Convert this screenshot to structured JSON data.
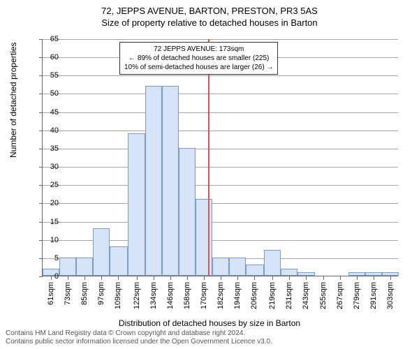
{
  "title": "72, JEPPS AVENUE, BARTON, PRESTON, PR3 5AS",
  "subtitle": "Size of property relative to detached houses in Barton",
  "y_axis_title": "Number of detached properties",
  "x_axis_title": "Distribution of detached houses by size in Barton",
  "footer_line1": "Contains HM Land Registry data © Crown copyright and database right 2024.",
  "footer_line2": "Contains public sector information licensed under the Open Government Licence v3.0.",
  "info_box": {
    "line1": "72 JEPPS AVENUE: 173sqm",
    "line2": "← 89% of detached houses are smaller (225)",
    "line3": "10% of semi-detached houses are larger (26) →"
  },
  "chart": {
    "type": "histogram",
    "ylim": [
      0,
      65
    ],
    "ytick_step": 5,
    "xlim_sqm": [
      55,
      309
    ],
    "x_labels": [
      "61sqm",
      "73sqm",
      "85sqm",
      "97sqm",
      "109sqm",
      "122sqm",
      "134sqm",
      "146sqm",
      "158sqm",
      "170sqm",
      "182sqm",
      "194sqm",
      "206sqm",
      "219sqm",
      "231sqm",
      "243sqm",
      "255sqm",
      "267sqm",
      "279sqm",
      "291sqm",
      "303sqm"
    ],
    "x_label_positions_sqm": [
      61,
      73,
      85,
      97,
      109,
      122,
      134,
      146,
      158,
      170,
      182,
      194,
      206,
      219,
      231,
      243,
      255,
      267,
      279,
      291,
      303
    ],
    "ref_line_sqm": 173,
    "bar_color": "#d5e3f7",
    "bar_border": "#7a9cc6",
    "ref_line_color": "#d9534f",
    "grid_color": "#666666",
    "background_color": "#ffffff",
    "bars": [
      {
        "x_sqm": 55,
        "w_sqm": 12,
        "value": 2
      },
      {
        "x_sqm": 67,
        "w_sqm": 12,
        "value": 5
      },
      {
        "x_sqm": 79,
        "w_sqm": 12,
        "value": 5
      },
      {
        "x_sqm": 91,
        "w_sqm": 12,
        "value": 13
      },
      {
        "x_sqm": 103,
        "w_sqm": 13,
        "value": 8
      },
      {
        "x_sqm": 116,
        "w_sqm": 12,
        "value": 39
      },
      {
        "x_sqm": 128,
        "w_sqm": 12,
        "value": 52
      },
      {
        "x_sqm": 140,
        "w_sqm": 12,
        "value": 52
      },
      {
        "x_sqm": 152,
        "w_sqm": 12,
        "value": 35
      },
      {
        "x_sqm": 164,
        "w_sqm": 12,
        "value": 21
      },
      {
        "x_sqm": 176,
        "w_sqm": 12,
        "value": 5
      },
      {
        "x_sqm": 188,
        "w_sqm": 12,
        "value": 5
      },
      {
        "x_sqm": 200,
        "w_sqm": 13,
        "value": 3
      },
      {
        "x_sqm": 213,
        "w_sqm": 12,
        "value": 7
      },
      {
        "x_sqm": 225,
        "w_sqm": 12,
        "value": 2
      },
      {
        "x_sqm": 237,
        "w_sqm": 12,
        "value": 1
      },
      {
        "x_sqm": 249,
        "w_sqm": 12,
        "value": 0
      },
      {
        "x_sqm": 261,
        "w_sqm": 12,
        "value": 0
      },
      {
        "x_sqm": 273,
        "w_sqm": 12,
        "value": 1
      },
      {
        "x_sqm": 285,
        "w_sqm": 12,
        "value": 1
      },
      {
        "x_sqm": 297,
        "w_sqm": 12,
        "value": 1
      }
    ]
  }
}
